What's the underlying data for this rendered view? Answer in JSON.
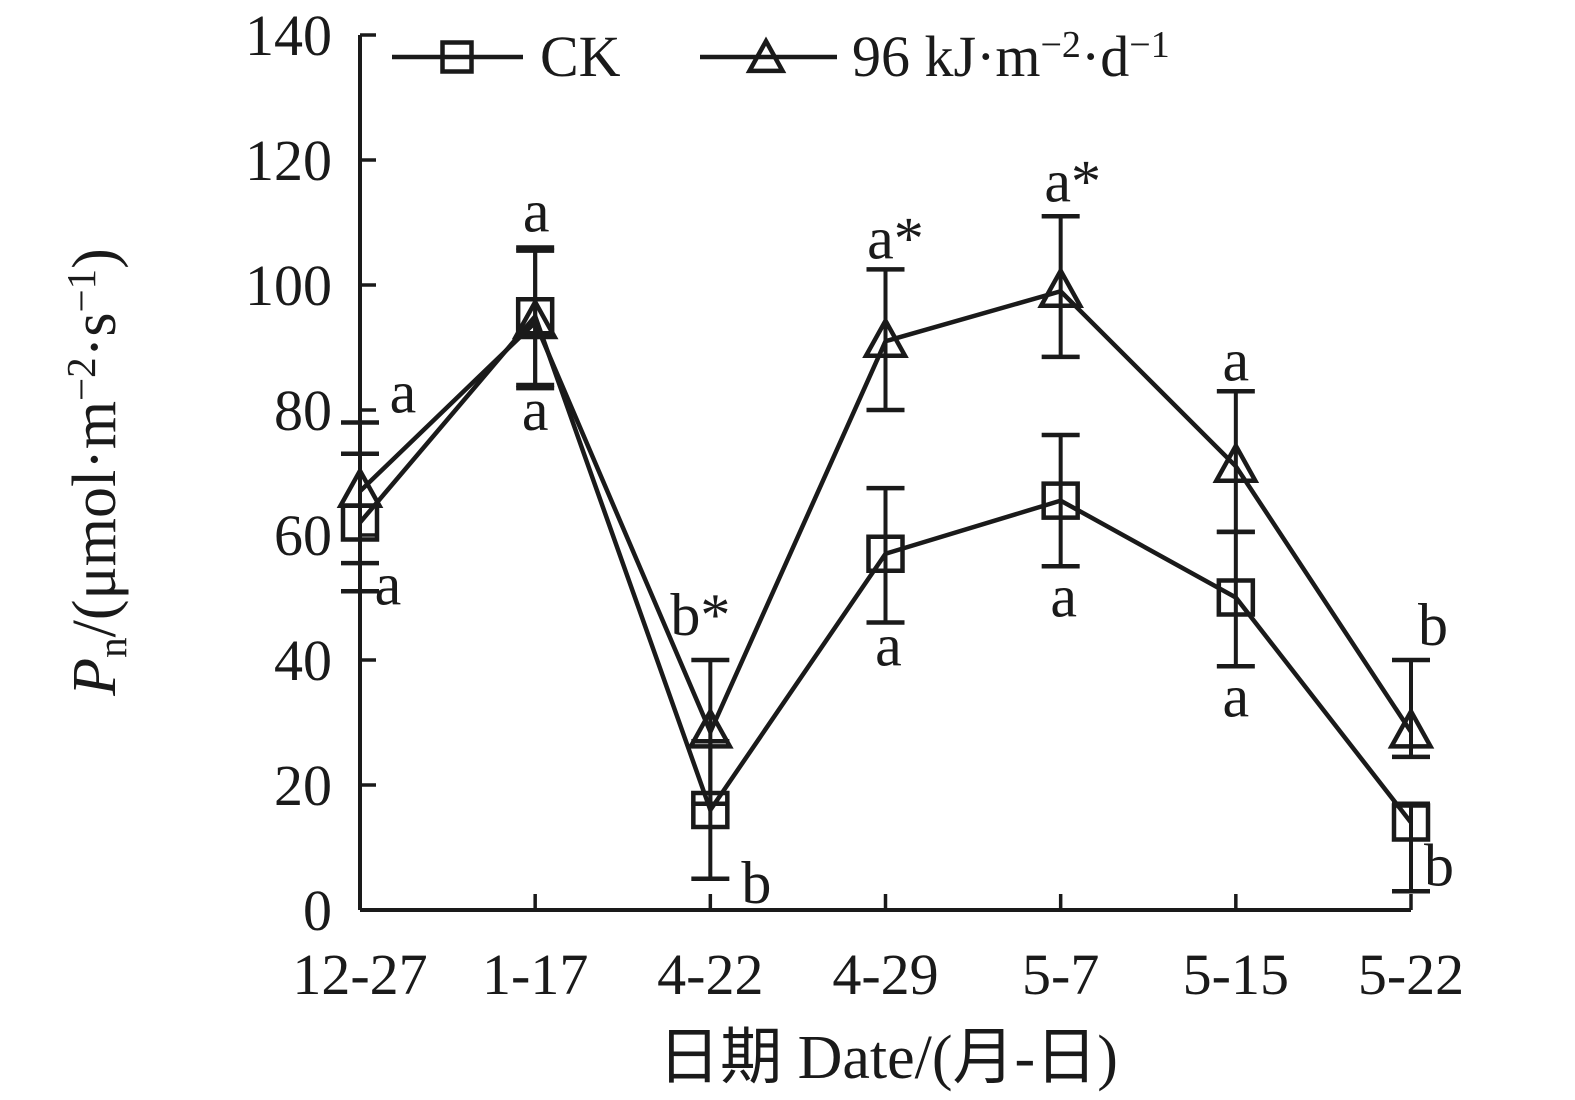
{
  "figure": {
    "background": "#ffffff",
    "ink_color": "#1a1a1a"
  },
  "chart_data": {
    "type": "line",
    "title": "",
    "xlabel": "日期 Date/(月-日)",
    "ylabel": "Pn/(μmol·m⁻²·s⁻¹)",
    "ylabel_parts": [
      {
        "t": "P",
        "italic": true
      },
      {
        "t": "n",
        "sub": true
      },
      {
        "t": "/(μmol·m"
      },
      {
        "t": "−2",
        "sup": true
      },
      {
        "t": "·s"
      },
      {
        "t": "−1",
        "sup": true
      },
      {
        "t": ")"
      }
    ],
    "x_categories": [
      "12-27",
      "1-17",
      "4-22",
      "4-29",
      "5-7",
      "5-15",
      "5-22"
    ],
    "ylim": [
      0,
      140
    ],
    "y_ticks": [
      0,
      20,
      40,
      60,
      80,
      100,
      120,
      140
    ],
    "grid": false,
    "legend": {
      "position": "top-inside",
      "items": [
        {
          "label": "CK",
          "marker": "square",
          "label_parts": [
            {
              "t": "CK"
            }
          ]
        },
        {
          "label": "96 kJ·m⁻²·d⁻¹",
          "marker": "triangle",
          "label_parts": [
            {
              "t": "96 kJ·m"
            },
            {
              "t": "−2",
              "sup": true
            },
            {
              "t": "·d"
            },
            {
              "t": "−1",
              "sup": true
            }
          ]
        }
      ]
    },
    "series": [
      {
        "name": "CK",
        "marker": "square",
        "values": [
          62,
          95,
          16,
          57,
          65.5,
          50,
          14
        ],
        "err_low": [
          51,
          84,
          5,
          46,
          55,
          39,
          3
        ],
        "err_high": [
          73,
          106,
          27,
          67.5,
          76,
          60.5,
          17
        ],
        "sig_letters": [
          {
            "text": "a",
            "side": "below",
            "dx": 28,
            "dy": 13
          },
          {
            "text": "a",
            "side": "below",
            "dx": 0,
            "dy": 45
          },
          {
            "text": "b",
            "side": "below",
            "dx": 46,
            "dy": 24
          },
          {
            "text": "a",
            "side": "below",
            "dx": 3,
            "dy": 43
          },
          {
            "text": "a",
            "side": "below",
            "dx": 3,
            "dy": 50
          },
          {
            "text": "a",
            "side": "below",
            "dx": 0,
            "dy": 50
          },
          {
            "text": "b",
            "side": "below",
            "dx": 28,
            "dy": -6
          }
        ]
      },
      {
        "name": "96 kJ·m⁻²·d⁻¹",
        "marker": "triangle",
        "values": [
          67,
          94,
          28.5,
          91,
          99,
          71,
          28.5
        ],
        "err_low": [
          55.5,
          83.5,
          17,
          80,
          88.5,
          60.5,
          24.5
        ],
        "err_high": [
          78,
          105.5,
          40,
          102.5,
          111,
          83,
          40
        ],
        "sig_letters": [
          {
            "text": "a",
            "side": "above",
            "dx": 43,
            "dy": -10
          },
          {
            "text": "a",
            "side": "above",
            "dx": 1,
            "dy": -19
          },
          {
            "text": "b*",
            "side": "above",
            "dx": -10,
            "dy": -25
          },
          {
            "text": "a*",
            "side": "above",
            "dx": 10,
            "dy": -11
          },
          {
            "text": "a*",
            "side": "above",
            "dx": 12,
            "dy": -15
          },
          {
            "text": "a",
            "side": "above",
            "dx": 0,
            "dy": -11
          },
          {
            "text": "b",
            "side": "above",
            "dx": 22,
            "dy": -15
          }
        ]
      }
    ]
  }
}
